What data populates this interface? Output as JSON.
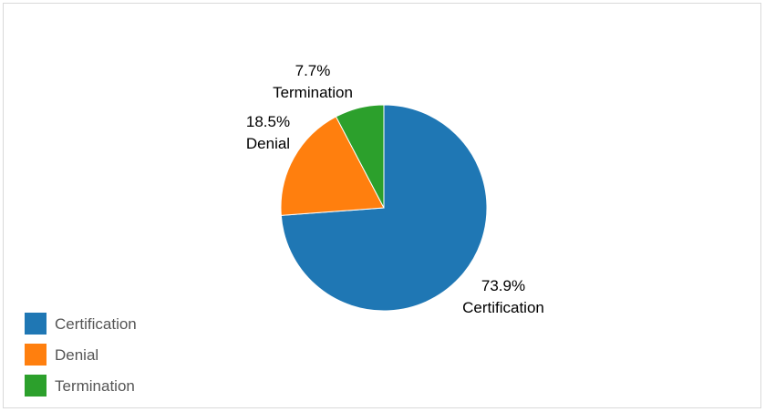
{
  "chart_data": {
    "type": "pie",
    "title": "",
    "slices": [
      {
        "label": "Certification",
        "value": 73.9,
        "display": "73.9%",
        "color": "#1f77b4"
      },
      {
        "label": "Denial",
        "value": 18.5,
        "display": "18.5%",
        "color": "#ff7f0e"
      },
      {
        "label": "Termination",
        "value": 7.7,
        "display": "7.7%",
        "color": "#2ca02c"
      }
    ],
    "start_angle": "12 o'clock",
    "direction": "clockwise",
    "legend": {
      "placement": "bottom-left",
      "entries": [
        "Certification",
        "Denial",
        "Termination"
      ]
    }
  }
}
